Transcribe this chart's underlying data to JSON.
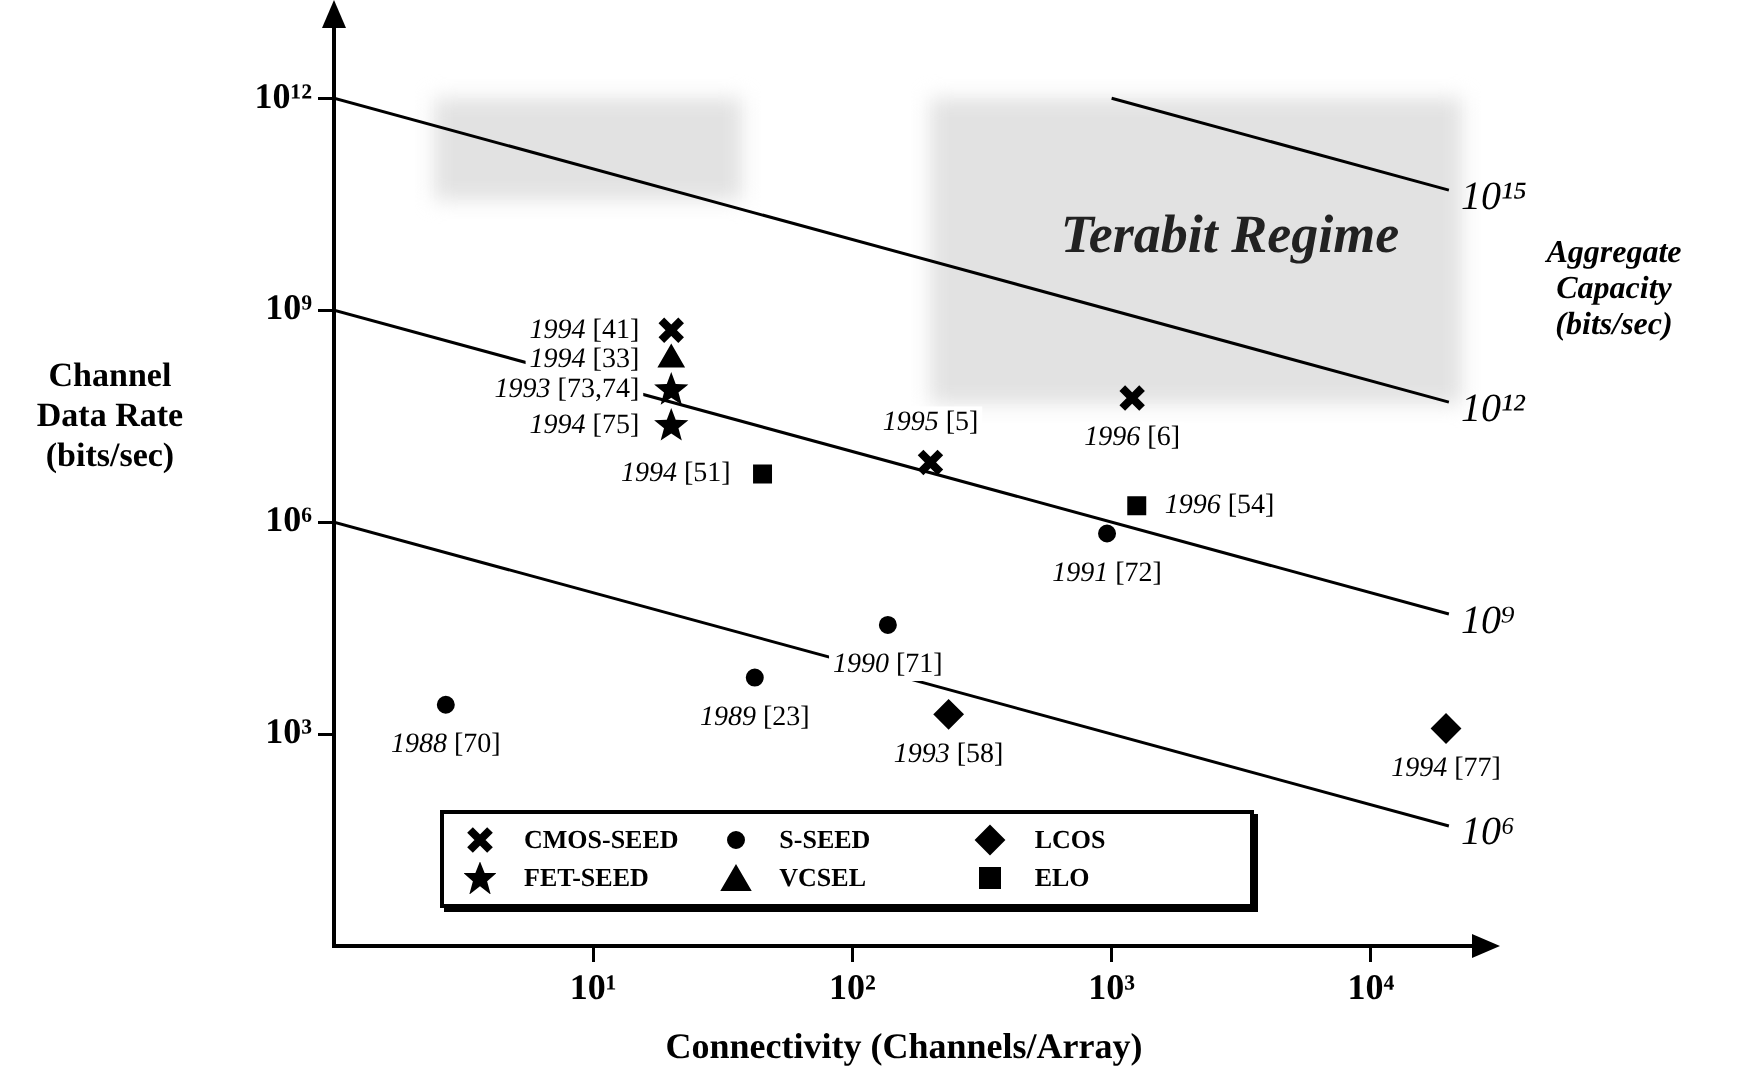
{
  "chart_data": {
    "type": "scatter",
    "xlabel": "Connectivity (Channels/Array)",
    "ylabel": "Channel Data Rate (bits/sec)",
    "log": "xy",
    "grid": false,
    "legend": "bottom",
    "xlim": [
      1,
      25000
    ],
    "xticks": [
      {
        "value": 10,
        "label": "10¹"
      },
      {
        "value": 100,
        "label": "10²"
      },
      {
        "value": 1000,
        "label": "10³"
      },
      {
        "value": 10000,
        "label": "10⁴"
      }
    ],
    "ylim": [
      1,
      10000000000000
    ],
    "yticks": [
      {
        "value": 1000,
        "label": "10³"
      },
      {
        "value": 1000000,
        "label": "10⁶"
      },
      {
        "value": 1000000000,
        "label": "10⁹"
      },
      {
        "value": 1000000000000,
        "label": "10¹²"
      }
    ],
    "series": [
      {
        "name": "CMOS-SEED",
        "type": "scatter",
        "marker": "cross",
        "color": "#000000",
        "x": [
          20,
          200,
          1200
        ],
        "values": [
          520000000,
          7000000,
          57000000
        ]
      },
      {
        "name": "S-SEED",
        "type": "scatter",
        "marker": "circle",
        "color": "#000000",
        "x": [
          2.7,
          42,
          137,
          960
        ],
        "values": [
          2600,
          6300,
          35000,
          690000
        ]
      },
      {
        "name": "LCOS",
        "type": "scatter",
        "marker": "diamond",
        "color": "#000000",
        "x": [
          235,
          19500
        ],
        "values": [
          1900,
          1200
        ]
      },
      {
        "name": "FET-SEED",
        "type": "scatter",
        "marker": "star",
        "color": "#000000",
        "x": [
          20,
          20
        ],
        "values": [
          74000000,
          23000000
        ]
      },
      {
        "name": "VCSEL",
        "type": "scatter",
        "marker": "triangle",
        "color": "#000000",
        "x": [
          20
        ],
        "values": [
          200000000
        ]
      },
      {
        "name": "ELO",
        "type": "scatter",
        "marker": "square",
        "color": "#000000",
        "x": [
          45,
          1250
        ],
        "values": [
          4800000,
          1700000
        ]
      },
      {
        "name": "10¹⁵",
        "type": "line",
        "marker": "none",
        "color": "#000000",
        "x": [
          1000,
          20000
        ],
        "values": [
          1000000000000,
          50000000000
        ]
      },
      {
        "name": "10¹²",
        "type": "line",
        "marker": "none",
        "color": "#000000",
        "x": [
          1,
          20000
        ],
        "values": [
          1000000000000,
          50000000
        ]
      },
      {
        "name": "10⁹",
        "type": "line",
        "marker": "none",
        "color": "#000000",
        "x": [
          1,
          20000
        ],
        "values": [
          1000000000,
          50000
        ]
      },
      {
        "name": "10⁶",
        "type": "line",
        "marker": "none",
        "color": "#000000",
        "x": [
          1,
          20000
        ],
        "values": [
          1000000,
          50
        ]
      }
    ],
    "annotations": [
      "Terabit Regime",
      "Aggregate Capacity (bits/sec)",
      {
        "text": "1994 [41]",
        "x": 20,
        "y": 520000000
      },
      {
        "text": "1994 [33]",
        "x": 20,
        "y": 200000000
      },
      {
        "text": "1993 [73,74]",
        "x": 20,
        "y": 74000000
      },
      {
        "text": "1994 [75]",
        "x": 20,
        "y": 23000000
      },
      {
        "text": "1994 [51]",
        "x": 45,
        "y": 4800000
      },
      {
        "text": "1988 [70]",
        "x": 2.7,
        "y": 2600
      },
      {
        "text": "1989 [23]",
        "x": 42,
        "y": 6300
      },
      {
        "text": "1990 [71]",
        "x": 137,
        "y": 35000
      },
      {
        "text": "1995 [5]",
        "x": 200,
        "y": 7000000
      },
      {
        "text": "1996 [6]",
        "x": 1200,
        "y": 57000000
      },
      {
        "text": "1996 [54]",
        "x": 1250,
        "y": 1700000
      },
      {
        "text": "1991 [72]",
        "x": 960,
        "y": 690000
      },
      {
        "text": "1993 [58]",
        "x": 235,
        "y": 1900
      },
      {
        "text": "1994 [77]",
        "x": 19500,
        "y": 1200
      }
    ]
  }
}
